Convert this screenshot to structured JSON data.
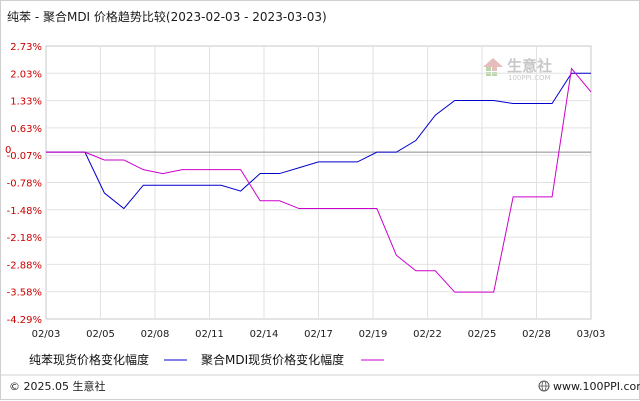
{
  "chart_data": {
    "type": "line",
    "title": "纯苯 - 聚合MDI 价格趋势比较(2023-02-03 - 2023-03-03)",
    "y_ticks": [
      "2.73%",
      "2.03%",
      "1.33%",
      "0.63%",
      "-0.07%",
      "-0.78%",
      "-1.48%",
      "-2.18%",
      "-2.88%",
      "-3.58%",
      "-4.29%"
    ],
    "y_zero_label": "0",
    "ylim": [
      -4.29,
      2.73
    ],
    "x_ticks": [
      "02/03",
      "02/05",
      "02/08",
      "02/11",
      "02/14",
      "02/17",
      "02/19",
      "02/22",
      "02/25",
      "02/28",
      "03/03"
    ],
    "x_count": 29,
    "series": [
      {
        "name": "纯苯现货价格变化幅度",
        "color": "#0000cc",
        "x": [
          0,
          2,
          3,
          4,
          5,
          6,
          7,
          8,
          9,
          10,
          11,
          12,
          13,
          14,
          15,
          16,
          17,
          18,
          19,
          20,
          21,
          22,
          23,
          24,
          25,
          26,
          27,
          28
        ],
        "values": [
          0.0,
          0.0,
          -1.05,
          -1.45,
          -0.85,
          -0.85,
          -0.85,
          -0.85,
          -0.85,
          -1.0,
          -0.55,
          -0.55,
          -0.4,
          -0.25,
          -0.25,
          -0.25,
          0.0,
          0.0,
          0.3,
          0.95,
          1.33,
          1.33,
          1.33,
          1.25,
          1.25,
          1.25,
          2.03,
          2.03
        ],
        "value_x": [
          0,
          2,
          3,
          4,
          5,
          6,
          7,
          8,
          9,
          10,
          11,
          12,
          13,
          14,
          15,
          16,
          17,
          18,
          19,
          20,
          21,
          22,
          23,
          24,
          25,
          26,
          27,
          28
        ]
      },
      {
        "name": "聚合MDI现货价格变化幅度",
        "color": "#cc00cc",
        "x": [
          0,
          2,
          3,
          4,
          5,
          6,
          7,
          8,
          9,
          10,
          11,
          12,
          13,
          14,
          15,
          16,
          17,
          18,
          19,
          20,
          21,
          22,
          23,
          24,
          25,
          26,
          27,
          28
        ],
        "values": [
          0.0,
          0.0,
          -0.2,
          -0.2,
          -0.45,
          -0.55,
          -0.45,
          -0.45,
          -0.45,
          -1.25,
          -1.25,
          -1.45,
          -1.45,
          -1.45,
          -1.45,
          -1.45,
          -2.65,
          -3.05,
          -3.05,
          -3.6,
          -3.6,
          -3.6,
          -1.15,
          -1.15,
          -1.15,
          2.15,
          1.55,
          1.55
        ],
        "value_x": [
          0,
          2,
          3,
          4,
          5,
          6,
          7,
          9,
          10,
          11,
          12,
          13,
          14,
          15,
          16,
          17,
          18,
          19,
          20,
          21,
          22,
          23,
          24,
          25,
          26,
          27,
          28,
          28
        ]
      }
    ],
    "grid": true,
    "legend": "bottom"
  },
  "watermark": {
    "brand": "生意社",
    "sub": "100PPI.COM"
  },
  "footer": {
    "left": "© 2025.05 生意社",
    "right": "www.100PPI.com"
  }
}
